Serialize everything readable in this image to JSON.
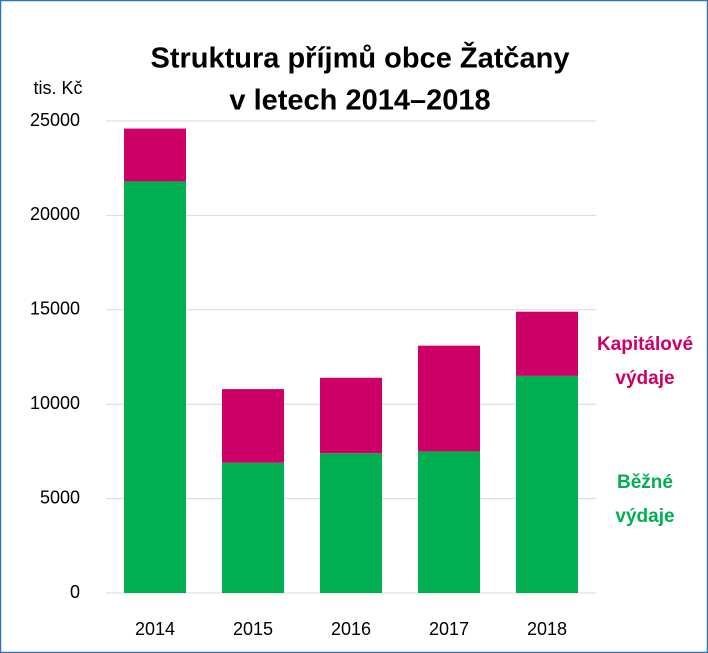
{
  "chart_data": {
    "type": "stacked_bar",
    "title": [
      "Struktura příjmů obce Žatčany",
      "v letech 2014–2018"
    ],
    "y_label": "tis. Kč",
    "categories": [
      "2014",
      "2015",
      "2016",
      "2017",
      "2018"
    ],
    "series": [
      {
        "name": "Běžné výdaje",
        "color": "#00b050",
        "values": [
          21800,
          6900,
          7400,
          7500,
          11500
        ]
      },
      {
        "name": "Kapitálové výdaje",
        "color": "#cc0066",
        "values": [
          2800,
          3900,
          4000,
          5600,
          3400
        ]
      }
    ],
    "ylim": [
      0,
      25000
    ],
    "yticks": [
      0,
      5000,
      10000,
      15000,
      20000,
      25000
    ],
    "grid": true,
    "legend": "right"
  }
}
